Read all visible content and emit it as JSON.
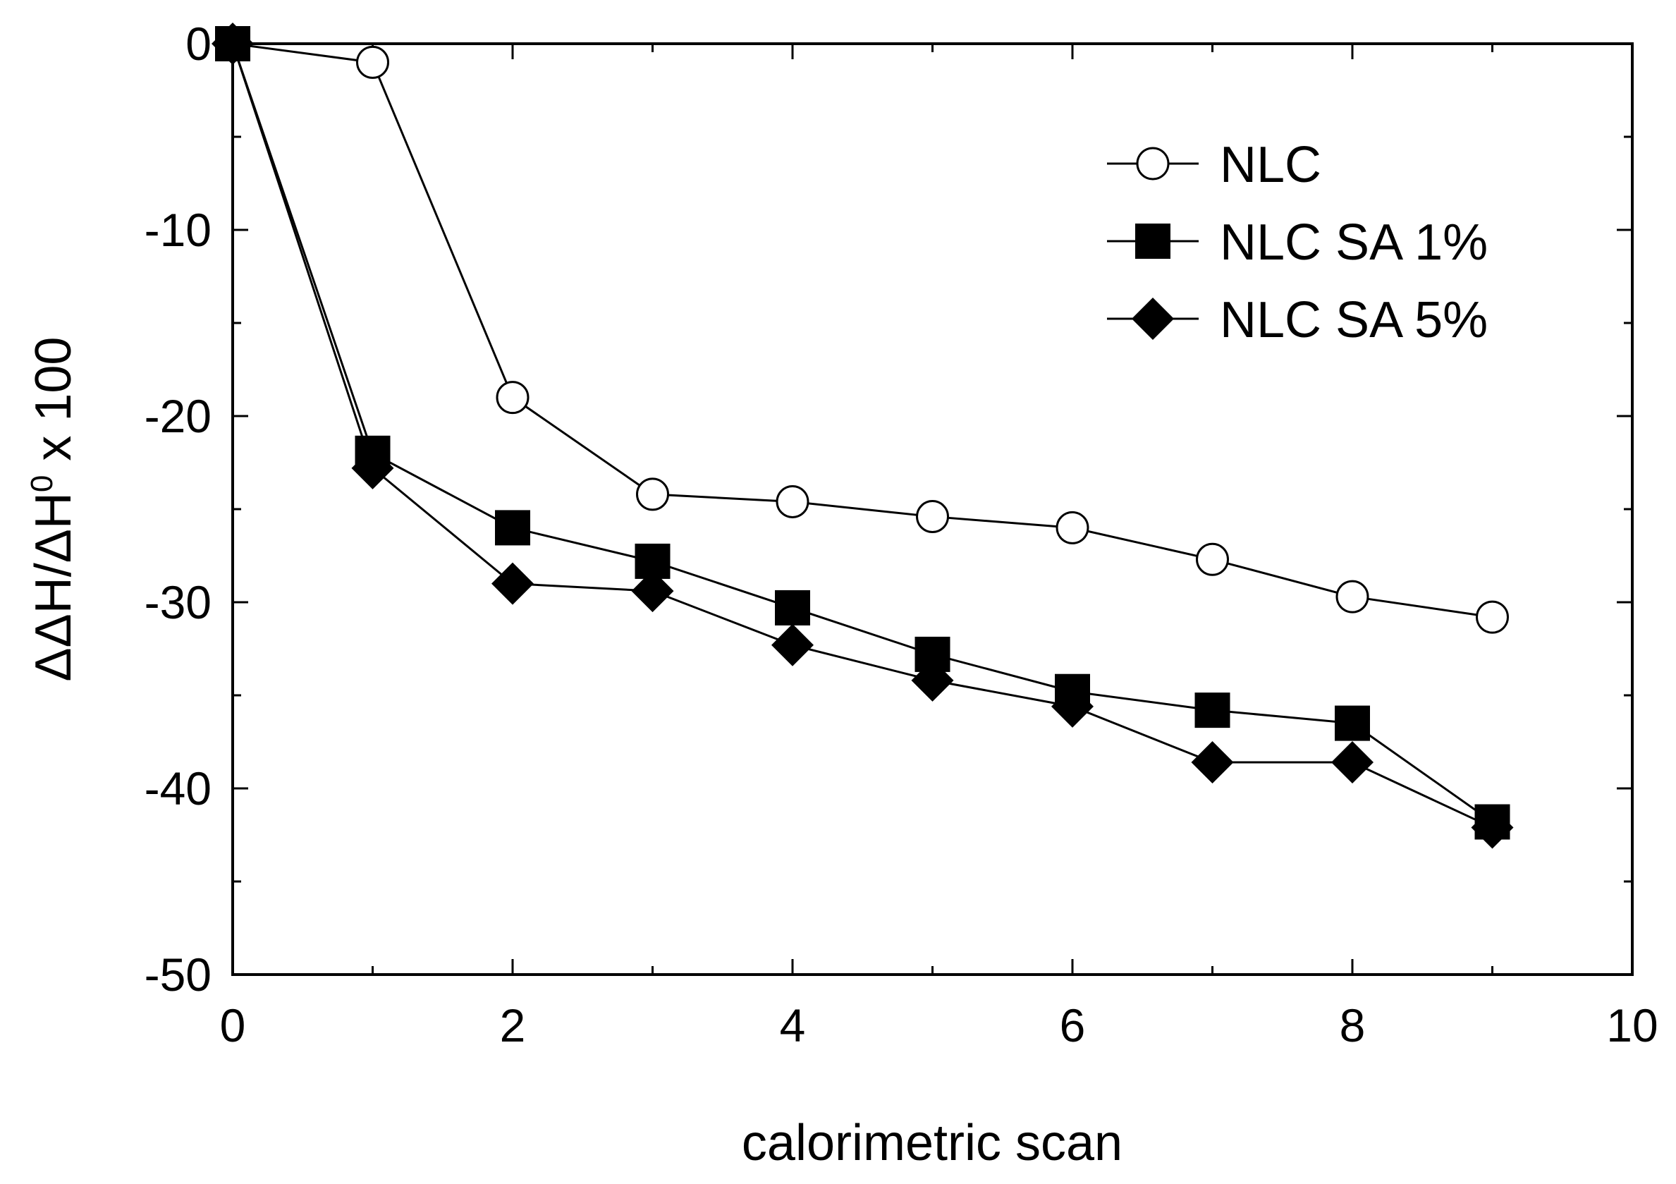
{
  "chart_data": {
    "type": "line",
    "xlabel": "calorimetric scan",
    "ylabel": {
      "main": "ΔΔH/ΔH",
      "superscript": "0",
      "suffix": " x 100"
    },
    "xlim": [
      0,
      10
    ],
    "ylim": [
      -50,
      0
    ],
    "x_ticks": [
      0,
      2,
      4,
      6,
      8,
      10
    ],
    "y_ticks": [
      0,
      -10,
      -20,
      -30,
      -40,
      -50
    ],
    "x_tick_labels": [
      "0",
      "2",
      "4",
      "6",
      "8",
      "10"
    ],
    "y_tick_labels": [
      "0",
      "-10",
      "-20",
      "-30",
      "-40",
      "-50"
    ],
    "grid": false,
    "legend_position": "top-right",
    "series": [
      {
        "name": "NLC",
        "marker": "open-circle",
        "x": [
          0,
          1,
          2,
          3,
          4,
          5,
          6,
          7,
          8,
          9
        ],
        "values": [
          0,
          -1,
          -19,
          -24.2,
          -24.6,
          -25.4,
          -26,
          -27.7,
          -29.7,
          -30.8
        ]
      },
      {
        "name": "NLC SA 1%",
        "marker": "filled-square",
        "x": [
          0,
          1,
          2,
          3,
          4,
          5,
          6,
          7,
          8,
          9
        ],
        "values": [
          0,
          -22,
          -26,
          -27.8,
          -30.3,
          -32.8,
          -34.8,
          -35.8,
          -36.5,
          -41.8
        ]
      },
      {
        "name": "NLC SA 5%",
        "marker": "filled-diamond",
        "x": [
          0,
          1,
          2,
          3,
          4,
          5,
          6,
          7,
          8,
          9
        ],
        "values": [
          0,
          -22.8,
          -29,
          -29.4,
          -32.3,
          -34.2,
          -35.6,
          -38.6,
          -38.6,
          -42.1
        ]
      }
    ]
  }
}
